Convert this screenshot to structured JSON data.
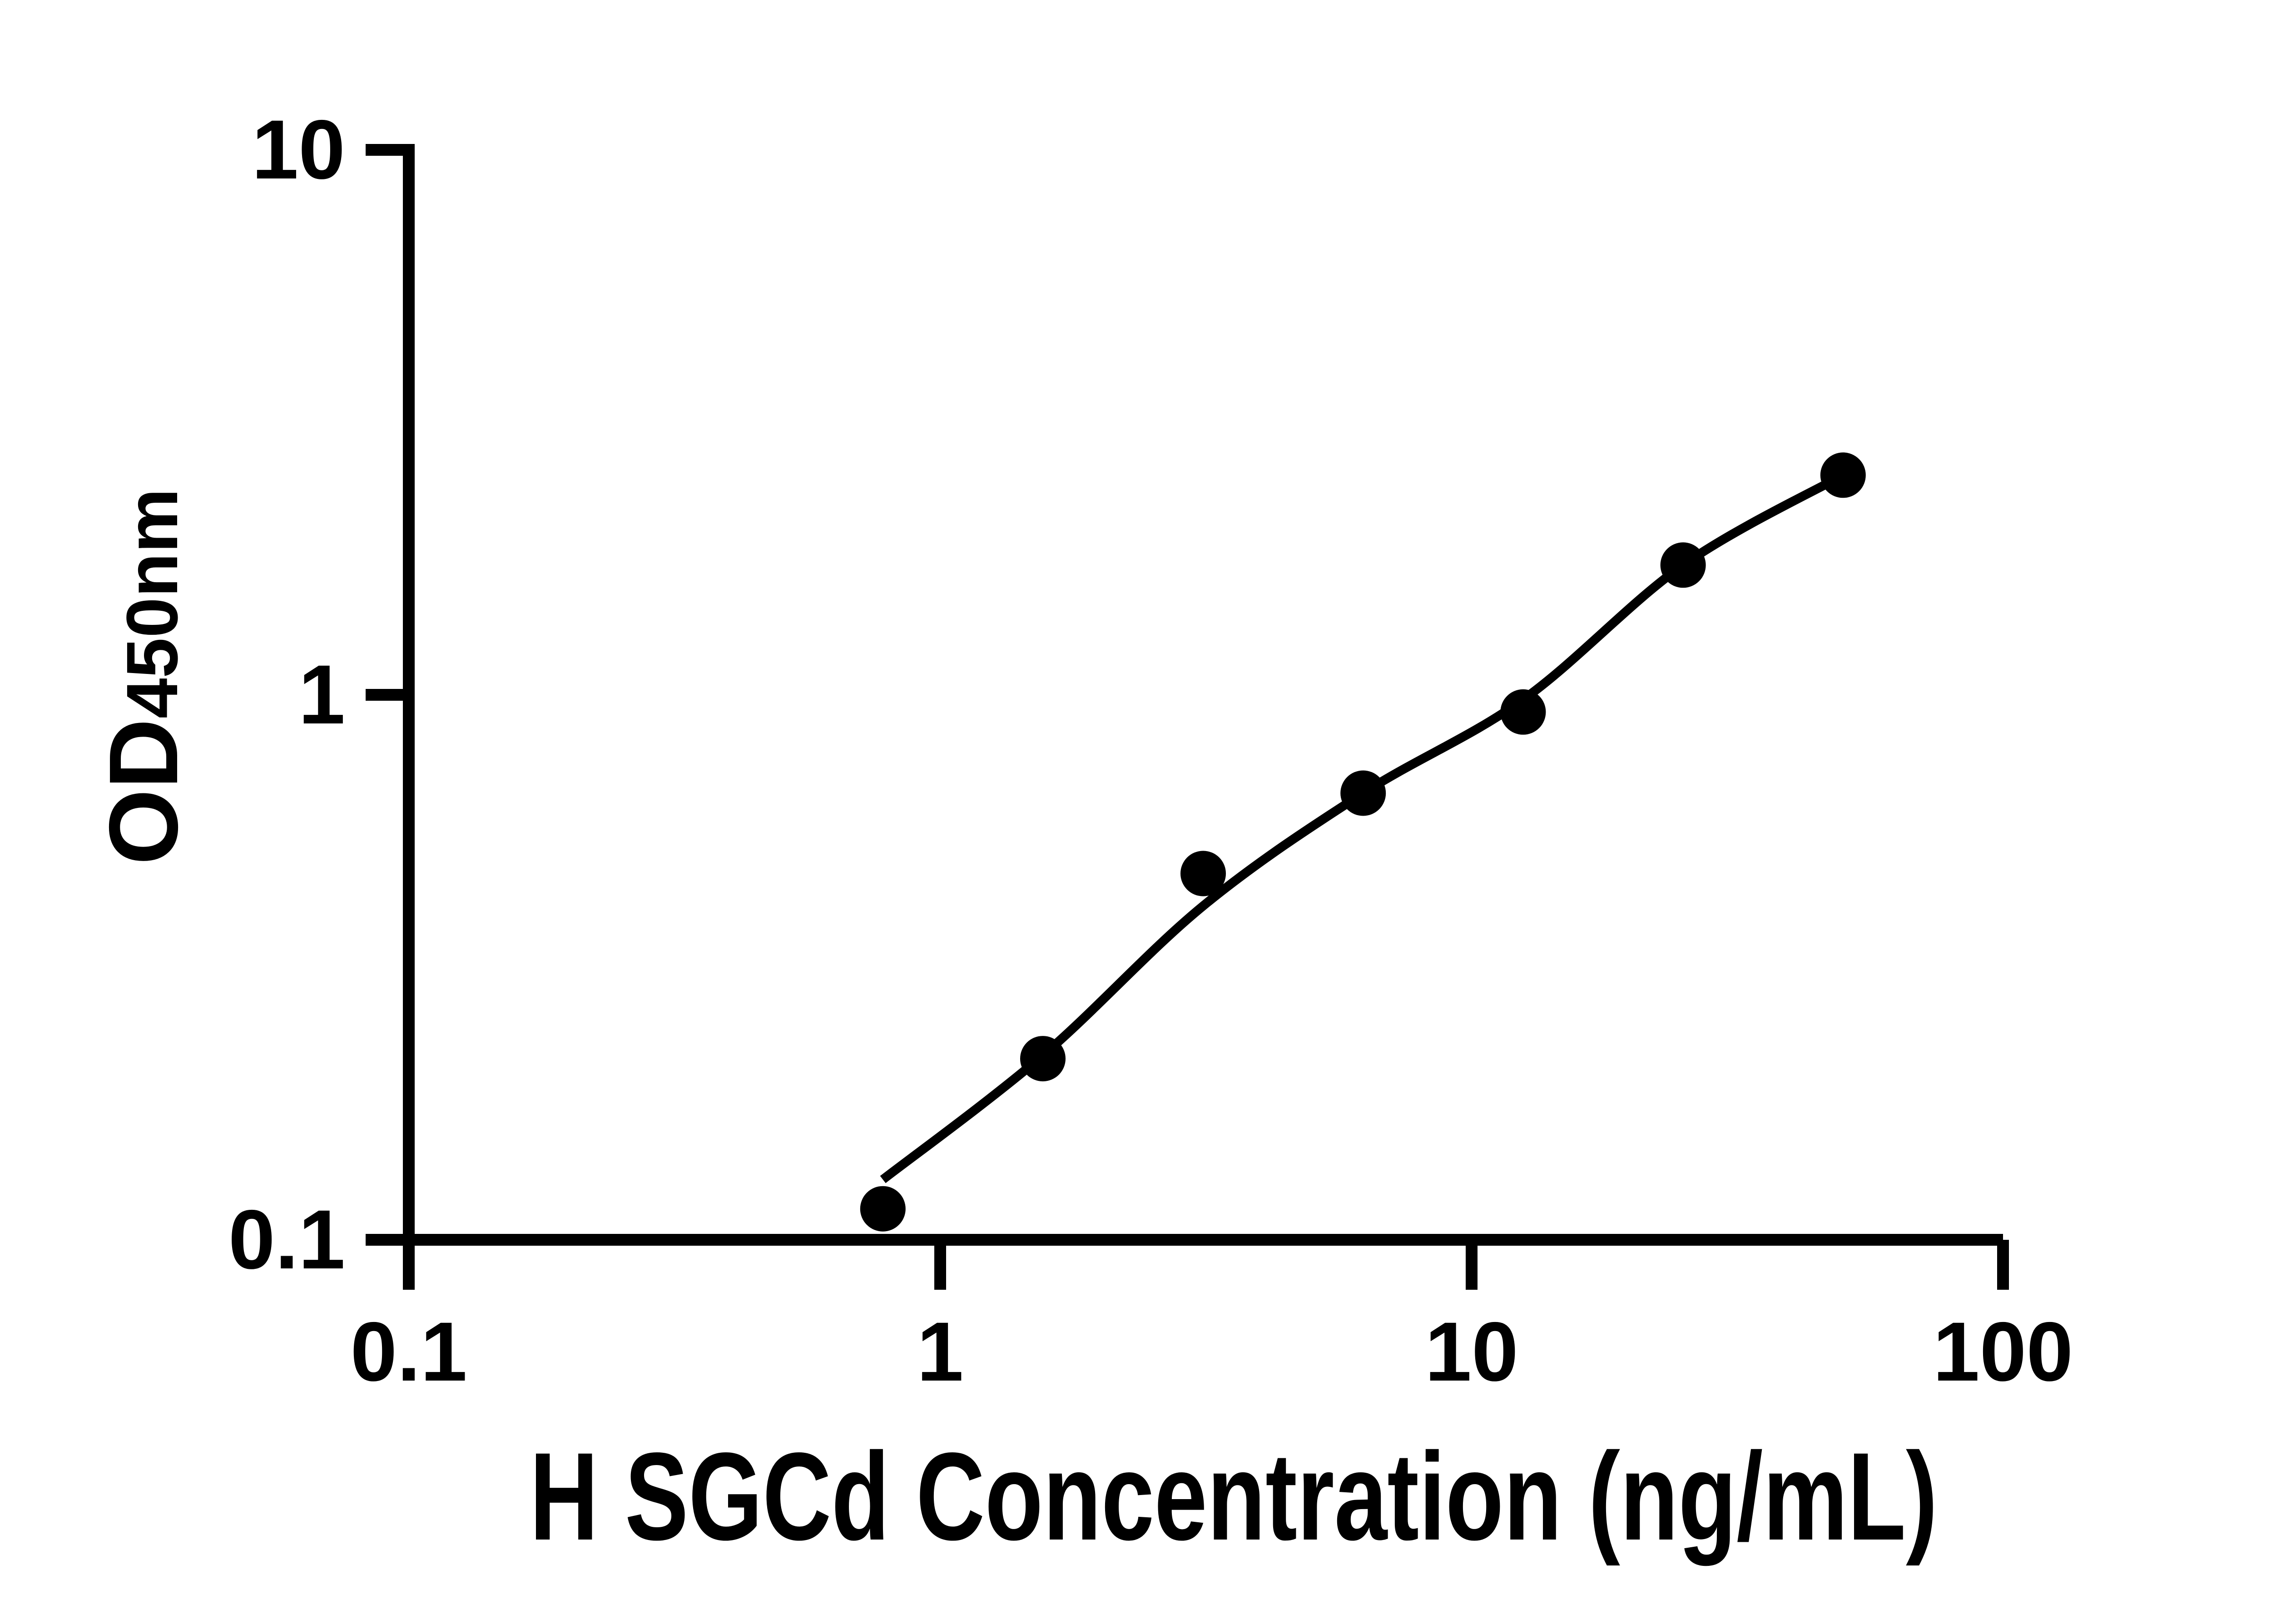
{
  "chart": {
    "background_color": "#ffffff",
    "ink_color": "#000000",
    "x_title": "H SGCd Concentration (ng/mL)",
    "y_title_main": "OD",
    "y_title_sub": "450nm",
    "x_ticks": [
      {
        "label": "0.1",
        "value": 0.1
      },
      {
        "label": "1",
        "value": 1
      },
      {
        "label": "10",
        "value": 10
      },
      {
        "label": "100",
        "value": 100
      }
    ],
    "y_ticks": [
      {
        "label": "10",
        "value": 10
      },
      {
        "label": "1",
        "value": 1
      },
      {
        "label": "0.1",
        "value": 0.1
      }
    ]
  },
  "chart_data": {
    "type": "scatter",
    "title": "",
    "xlabel": "H SGCd Concentration (ng/mL)",
    "ylabel": "OD450nm",
    "x_scale": "log",
    "y_scale": "log",
    "xlim": [
      0.1,
      100
    ],
    "ylim": [
      0.1,
      10
    ],
    "grid": false,
    "legend_position": "none",
    "marker_style": "filled-circle",
    "marker_color": "#000000",
    "line_color": "#000000",
    "series": [
      {
        "name": "standards",
        "kind": "points",
        "x": [
          0.78,
          1.56,
          3.125,
          6.25,
          12.5,
          25,
          50
        ],
        "y": [
          0.114,
          0.215,
          0.47,
          0.66,
          0.93,
          1.73,
          2.53
        ]
      },
      {
        "name": "fit-curve",
        "kind": "line",
        "x": [
          0.78,
          1.56,
          3.125,
          6.25,
          12.5,
          25,
          50
        ],
        "y": [
          0.129,
          0.218,
          0.41,
          0.66,
          0.98,
          1.73,
          2.53
        ]
      }
    ]
  }
}
